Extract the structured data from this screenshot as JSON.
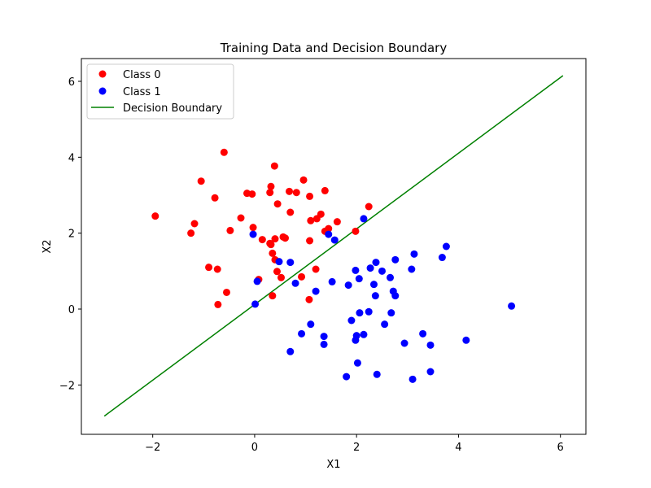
{
  "chart_data": {
    "type": "scatter",
    "title": "Training Data and Decision Boundary",
    "xlabel": "X1",
    "ylabel": "X2",
    "xlim": [
      -3.4,
      6.5
    ],
    "ylim": [
      -3.3,
      6.6
    ],
    "xticks": [
      -2,
      0,
      2,
      4,
      6
    ],
    "yticks": [
      -2,
      0,
      2,
      4,
      6
    ],
    "xtick_labels": [
      "−2",
      "0",
      "2",
      "4",
      "6"
    ],
    "ytick_labels": [
      "−2",
      "0",
      "2",
      "4",
      "6"
    ],
    "grid": false,
    "legend_position": "upper-left",
    "colors": {
      "class0": "#ff0000",
      "class1": "#0000ff",
      "boundary": "#008000"
    },
    "series": [
      {
        "name": "Class 0",
        "kind": "scatter",
        "points": [
          [
            -1.95,
            2.45
          ],
          [
            -1.18,
            2.25
          ],
          [
            -1.25,
            2.0
          ],
          [
            -1.05,
            3.37
          ],
          [
            -0.78,
            2.93
          ],
          [
            -0.6,
            4.13
          ],
          [
            -0.48,
            2.07
          ],
          [
            -0.27,
            2.4
          ],
          [
            -0.15,
            3.05
          ],
          [
            -0.05,
            3.03
          ],
          [
            -0.03,
            2.15
          ],
          [
            0.15,
            1.83
          ],
          [
            0.3,
            1.73
          ],
          [
            0.32,
            1.7
          ],
          [
            0.3,
            3.07
          ],
          [
            0.32,
            3.23
          ],
          [
            0.39,
            3.77
          ],
          [
            0.4,
            1.85
          ],
          [
            0.35,
            1.47
          ],
          [
            0.4,
            1.3
          ],
          [
            0.45,
            2.77
          ],
          [
            0.56,
            1.9
          ],
          [
            0.6,
            1.87
          ],
          [
            0.68,
            3.1
          ],
          [
            0.7,
            2.55
          ],
          [
            0.82,
            3.07
          ],
          [
            0.96,
            3.4
          ],
          [
            1.08,
            2.97
          ],
          [
            1.1,
            2.33
          ],
          [
            1.22,
            2.38
          ],
          [
            1.3,
            2.5
          ],
          [
            1.38,
            3.12
          ],
          [
            1.38,
            2.05
          ],
          [
            1.45,
            2.12
          ],
          [
            1.62,
            2.3
          ],
          [
            1.98,
            2.05
          ],
          [
            2.24,
            2.7
          ],
          [
            1.08,
            1.8
          ],
          [
            1.2,
            1.05
          ],
          [
            0.92,
            0.85
          ],
          [
            0.52,
            0.83
          ],
          [
            0.44,
            0.99
          ],
          [
            0.35,
            0.35
          ],
          [
            0.08,
            0.78
          ],
          [
            -0.9,
            1.1
          ],
          [
            -0.73,
            1.05
          ],
          [
            -0.55,
            0.44
          ],
          [
            -0.72,
            0.12
          ],
          [
            1.07,
            0.25
          ]
        ]
      },
      {
        "name": "Class 1",
        "kind": "scatter",
        "points": [
          [
            -0.03,
            1.97
          ],
          [
            0.05,
            0.73
          ],
          [
            0.01,
            0.13
          ],
          [
            0.48,
            1.25
          ],
          [
            0.7,
            1.23
          ],
          [
            0.8,
            0.68
          ],
          [
            0.92,
            -0.65
          ],
          [
            1.1,
            -0.4
          ],
          [
            0.7,
            -1.12
          ],
          [
            1.2,
            0.47
          ],
          [
            1.36,
            -0.72
          ],
          [
            1.36,
            -0.93
          ],
          [
            1.45,
            1.97
          ],
          [
            1.52,
            0.72
          ],
          [
            1.57,
            1.82
          ],
          [
            1.8,
            -1.78
          ],
          [
            1.84,
            0.63
          ],
          [
            1.9,
            -0.3
          ],
          [
            1.98,
            1.02
          ],
          [
            1.98,
            -0.82
          ],
          [
            2.0,
            -0.7
          ],
          [
            2.02,
            -1.42
          ],
          [
            2.05,
            0.8
          ],
          [
            2.06,
            -0.1
          ],
          [
            2.14,
            -0.67
          ],
          [
            2.14,
            2.38
          ],
          [
            2.24,
            -0.07
          ],
          [
            2.27,
            1.08
          ],
          [
            2.34,
            0.65
          ],
          [
            2.37,
            0.35
          ],
          [
            2.38,
            1.23
          ],
          [
            2.4,
            -1.72
          ],
          [
            2.5,
            1.0
          ],
          [
            2.55,
            -0.4
          ],
          [
            2.66,
            0.83
          ],
          [
            2.68,
            -0.1
          ],
          [
            2.72,
            0.47
          ],
          [
            2.76,
            0.35
          ],
          [
            2.76,
            1.3
          ],
          [
            2.94,
            -0.9
          ],
          [
            3.08,
            1.05
          ],
          [
            3.1,
            -1.85
          ],
          [
            3.13,
            1.45
          ],
          [
            3.3,
            -0.65
          ],
          [
            3.45,
            -0.95
          ],
          [
            3.45,
            -1.65
          ],
          [
            3.68,
            1.36
          ],
          [
            3.76,
            1.65
          ],
          [
            4.15,
            -0.82
          ],
          [
            5.04,
            0.08
          ]
        ]
      },
      {
        "name": "Decision Boundary",
        "kind": "line",
        "points": [
          [
            -2.95,
            -2.82
          ],
          [
            6.05,
            6.15
          ]
        ]
      }
    ]
  }
}
